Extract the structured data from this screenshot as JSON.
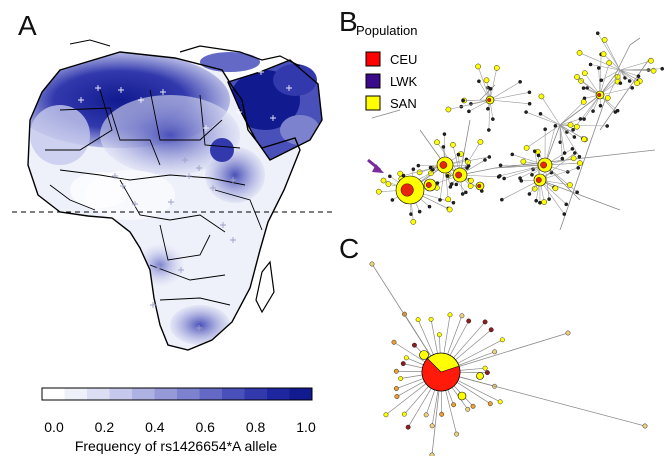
{
  "panels": {
    "a": {
      "letter": "A"
    },
    "b": {
      "letter": "B"
    },
    "c": {
      "letter": "C"
    }
  },
  "legend": {
    "title": "Population",
    "items": [
      {
        "label": "CEU",
        "color": "#ff0000"
      },
      {
        "label": "LWK",
        "color": "#3b0a8a"
      },
      {
        "label": "SAN",
        "color": "#ffff00"
      }
    ]
  },
  "colorbar": {
    "ticks": [
      "0.0",
      "0.2",
      "0.4",
      "0.6",
      "0.8",
      "1.0"
    ],
    "label": "Frequency of rs1426654*A allele",
    "colors": [
      "#ffffff",
      "#eef0fa",
      "#dcdff3",
      "#c6c9ec",
      "#aeb2e2",
      "#9699d8",
      "#7d82cf",
      "#6369c4",
      "#4a50b9",
      "#3239ad",
      "#1f27a0",
      "#111a8f"
    ]
  },
  "arrow_color": "#7a2a9a"
}
